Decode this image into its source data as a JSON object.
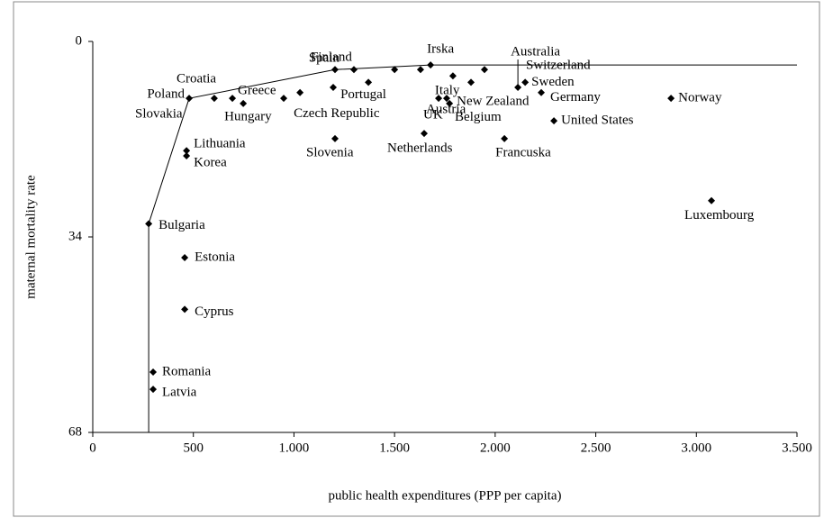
{
  "chart_data": {
    "type": "scatter",
    "x_label": "public health expenditures (PPP per capita)",
    "y_label": "maternal mortality rate",
    "xlim": [
      0,
      3500
    ],
    "xticks": [
      0,
      500,
      {
        "value": 1000,
        "label": "1.000"
      },
      {
        "value": 1500,
        "label": "1.500"
      },
      {
        "value": 2000,
        "label": "2.000"
      },
      {
        "value": 2500,
        "label": "2.500"
      },
      {
        "value": 3000,
        "label": "3.000"
      },
      {
        "value": 3500,
        "label": "3.500"
      }
    ],
    "ylim": [
      0,
      68
    ],
    "yticks": [
      0,
      34,
      68
    ],
    "y_inverted": true,
    "color": "#000000",
    "labels": [
      "Poland",
      "Croatia",
      "Slovakia",
      "Hungary",
      "Greece",
      "Czech Republic",
      "Lithuania",
      "Korea",
      "Bulgaria",
      "Estonia",
      "Cyprus",
      "Romania",
      "Latvia",
      "Spain",
      "Portugal",
      "Finland",
      null,
      null,
      "Irska",
      null,
      "Slovenia",
      "Netherlands",
      "Italy",
      "Austria",
      "UK",
      "New Zealand",
      "Belgium",
      "Switzerland",
      "Australia",
      "Sweden",
      "Germany",
      "United States",
      "Francuska",
      "Norway",
      "Luxembourg"
    ],
    "x": [
      479,
      604,
      694,
      748,
      949,
      1030,
      466,
      466,
      278,
      457,
      457,
      300,
      300,
      1204,
      1370,
      1298,
      1500,
      1629,
      1679,
      1195,
      1204,
      1647,
      1790,
      1719,
      1759,
      1773,
      1880,
      1947,
      2113,
      2149,
      2229,
      2292,
      2046,
      2874,
      3075
    ],
    "y": [
      9.9,
      9.9,
      9.9,
      10.8,
      9.9,
      8.9,
      19.0,
      19.9,
      31.7,
      37.6,
      46.6,
      57.5,
      60.5,
      4.9,
      7.1,
      4.9,
      4.9,
      4.9,
      4.1,
      8.0,
      16.9,
      16.0,
      6.0,
      9.9,
      9.9,
      10.8,
      7.1,
      4.9,
      8.0,
      7.1,
      8.9,
      13.8,
      16.9,
      9.9,
      27.7
    ],
    "frontier": {
      "x": [
        278,
        278,
        479,
        1204,
        1679,
        3500
      ],
      "y": [
        68,
        31.7,
        9.9,
        4.9,
        4.1,
        4.1
      ]
    }
  }
}
